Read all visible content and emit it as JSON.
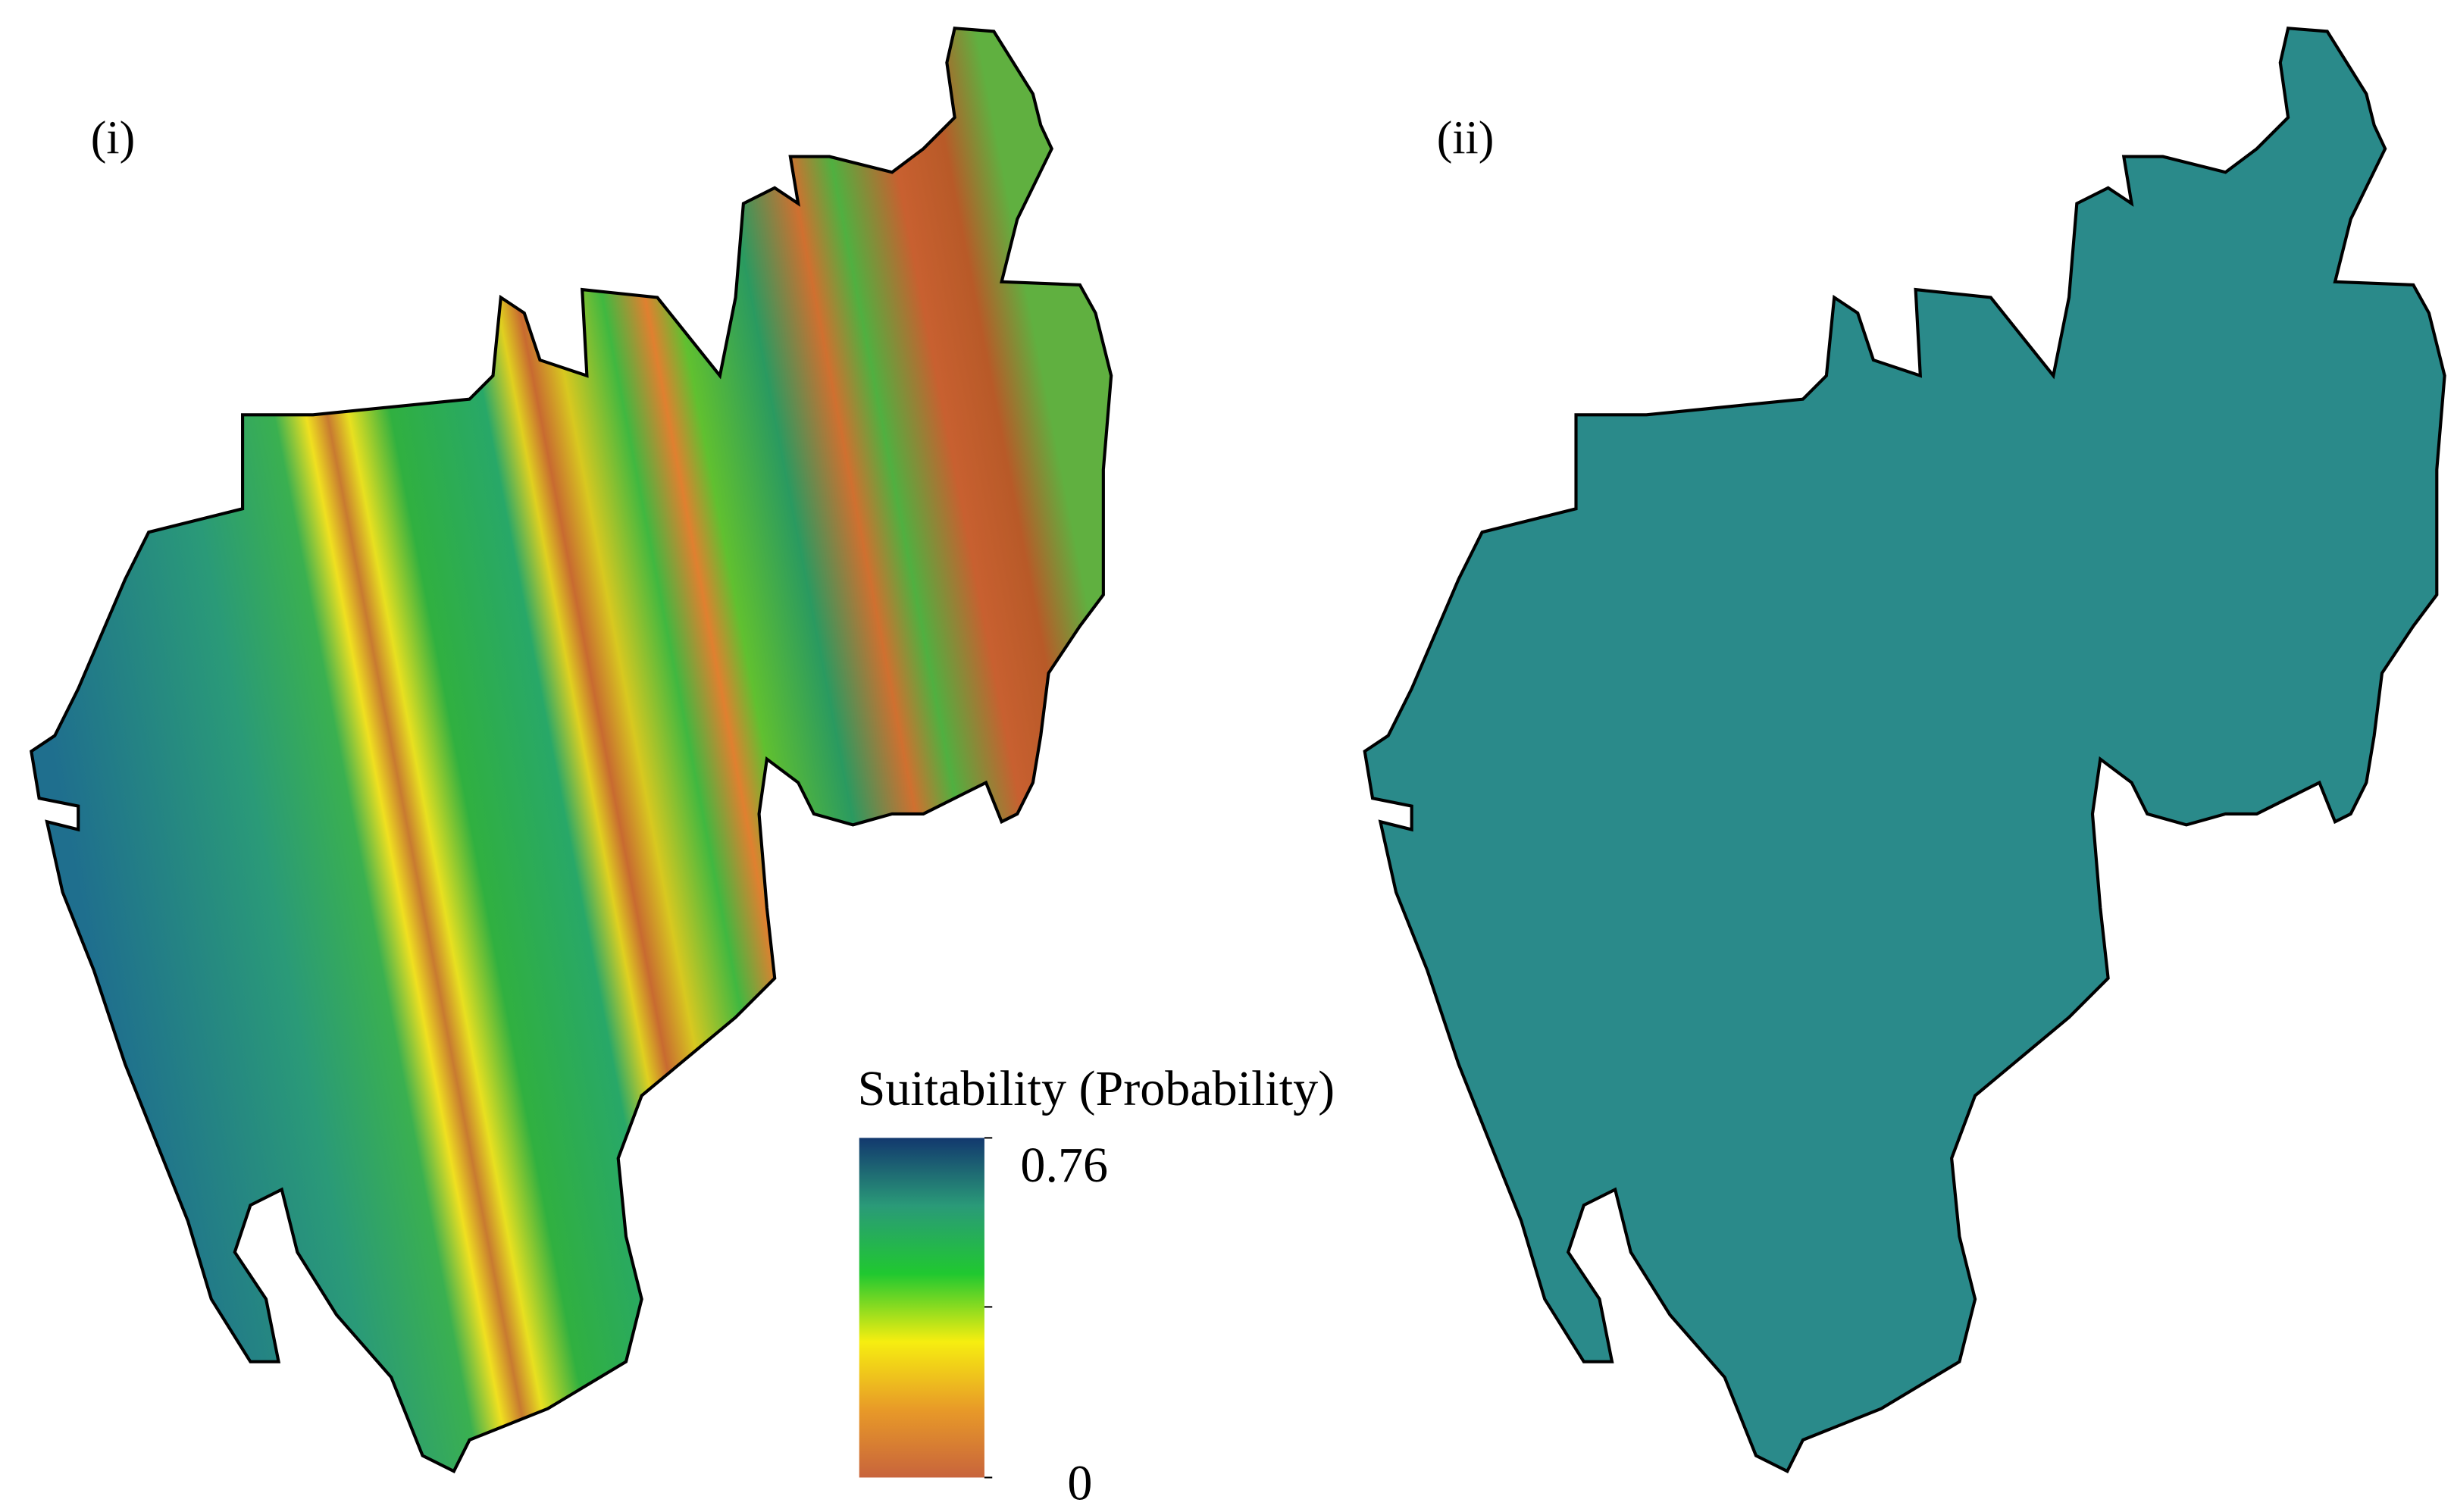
{
  "panels": [
    {
      "label": "(i)"
    },
    {
      "label": "(ii)"
    }
  ],
  "legend": {
    "title": "Suitability (Probability)",
    "range": [
      0,
      0.76
    ],
    "ticks": [
      0.76,
      0
    ],
    "colors": [
      "#c8643c",
      "#e89a28",
      "#f6ee10",
      "#20c830",
      "#2a9a78",
      "#12386e"
    ]
  }
}
